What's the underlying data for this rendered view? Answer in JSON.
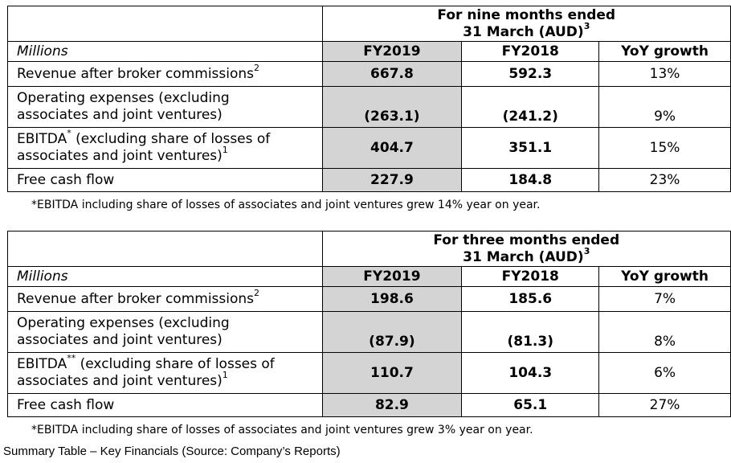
{
  "tables": [
    {
      "period_line1": "For nine months ended",
      "period_line2": "31 March (AUD)",
      "period_sup": "3",
      "units": "Millions",
      "col_fy2019": "FY2019",
      "col_fy2018": "FY2018",
      "col_growth": "YoY growth",
      "rows": [
        {
          "label1": "Revenue after broker commissions",
          "label_sup": "2",
          "label2": "",
          "fy2019": "667.8",
          "fy2018": "592.3",
          "growth": "13%"
        },
        {
          "label1": "Operating expenses (excluding",
          "label_sup": "",
          "label2": "associates and joint ventures)",
          "fy2019": "(263.1)",
          "fy2018": "(241.2)",
          "growth": "9%"
        },
        {
          "label1": "EBITDA",
          "label_mid_sup": "*",
          "label1_rest": " (excluding share of losses of",
          "label2": "associates and joint ventures)",
          "label_sup": "1",
          "fy2019": "404.7",
          "fy2018": "351.1",
          "growth": "15%"
        },
        {
          "label1": "Free cash flow",
          "label_sup": "",
          "label2": "",
          "fy2019": "227.9",
          "fy2018": "184.8",
          "growth": "23%"
        }
      ],
      "footnote": "*EBITDA including share of losses of associates and joint ventures grew 14% year on year."
    },
    {
      "period_line1": "For three months ended",
      "period_line2": "31 March (AUD)",
      "period_sup": "3",
      "units": "Millions",
      "col_fy2019": "FY2019",
      "col_fy2018": "FY2018",
      "col_growth": "YoY growth",
      "rows": [
        {
          "label1": "Revenue after broker commissions",
          "label_sup": "2",
          "label2": "",
          "fy2019": "198.6",
          "fy2018": "185.6",
          "growth": "7%"
        },
        {
          "label1": "Operating expenses (excluding",
          "label_sup": "",
          "label2": "associates and joint ventures)",
          "fy2019": "(87.9)",
          "fy2018": "(81.3)",
          "growth": "8%"
        },
        {
          "label1": "EBITDA",
          "label_mid_sup": "**",
          "label1_rest": " (excluding share of losses of",
          "label2": "associates and joint ventures)",
          "label_sup": "1",
          "fy2019": "110.7",
          "fy2018": "104.3",
          "growth": "6%"
        },
        {
          "label1": "Free cash flow",
          "label_sup": "",
          "label2": "",
          "fy2019": "82.9",
          "fy2018": "65.1",
          "growth": "27%"
        }
      ],
      "footnote": "*EBITDA including share of losses of associates and joint ventures grew 3% year on year."
    }
  ],
  "caption": "Summary Table – Key Financials (Source: Company’s Reports)"
}
